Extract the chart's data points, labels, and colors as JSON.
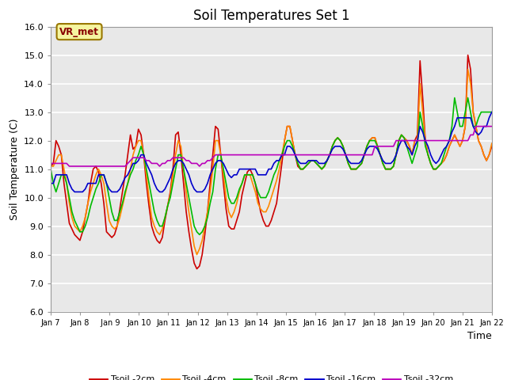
{
  "title": "Soil Temperatures Set 1",
  "xlabel": "Time",
  "ylabel": "Soil Temperature (C)",
  "ylim": [
    6.0,
    16.0
  ],
  "yticks": [
    6.0,
    7.0,
    8.0,
    9.0,
    10.0,
    11.0,
    12.0,
    13.0,
    14.0,
    15.0,
    16.0
  ],
  "xtick_labels": [
    "Jan 7",
    "Jan 8",
    " Jan 9",
    "Jan 10",
    "Jan 11",
    "Jan 12",
    "Jan 13",
    "Jan 14",
    "Jan 15",
    "Jan 16",
    "Jan 17",
    "Jan 18",
    "Jan 19",
    "Jan 20",
    "Jan 21",
    "Jan 22"
  ],
  "bg_color": "#e8e8e8",
  "fig_color": "#ffffff",
  "vrmet_label": "VR_met",
  "legend_labels": [
    "Tsoil -2cm",
    "Tsoil -4cm",
    "Tsoil -8cm",
    "Tsoil -16cm",
    "Tsoil -32cm"
  ],
  "line_colors": [
    "#cc0000",
    "#ff8800",
    "#00bb00",
    "#0000cc",
    "#bb00bb"
  ],
  "line_widths": [
    1.2,
    1.2,
    1.2,
    1.2,
    1.2
  ],
  "t2cm": [
    11.1,
    11.2,
    12.0,
    11.8,
    11.5,
    10.5,
    9.8,
    9.1,
    8.9,
    8.7,
    8.6,
    8.5,
    8.8,
    9.3,
    9.8,
    10.5,
    11.0,
    11.1,
    10.9,
    10.5,
    9.8,
    8.8,
    8.7,
    8.6,
    8.7,
    9.0,
    9.6,
    10.2,
    10.8,
    11.5,
    12.2,
    11.7,
    11.8,
    12.4,
    12.2,
    11.5,
    10.5,
    9.7,
    9.0,
    8.7,
    8.5,
    8.4,
    8.6,
    9.2,
    9.7,
    10.2,
    11.0,
    12.2,
    12.3,
    11.5,
    10.5,
    9.5,
    8.8,
    8.2,
    7.7,
    7.5,
    7.6,
    8.0,
    8.7,
    9.5,
    10.5,
    11.5,
    12.5,
    12.4,
    11.5,
    10.5,
    9.6,
    9.0,
    8.9,
    8.9,
    9.2,
    9.5,
    10.1,
    10.5,
    10.9,
    11.0,
    10.8,
    10.5,
    10.0,
    9.5,
    9.2,
    9.0,
    9.0,
    9.2,
    9.5,
    9.8,
    10.5,
    11.2,
    12.0,
    12.5,
    12.5,
    12.0,
    11.5,
    11.1,
    11.0,
    11.0,
    11.1,
    11.2,
    11.3,
    11.3,
    11.2,
    11.1,
    11.0,
    11.1,
    11.3,
    11.5,
    11.8,
    12.0,
    12.1,
    12.0,
    11.8,
    11.5,
    11.2,
    11.0,
    11.0,
    11.0,
    11.1,
    11.2,
    11.5,
    11.8,
    12.0,
    12.1,
    12.1,
    11.8,
    11.5,
    11.2,
    11.0,
    11.0,
    11.0,
    11.1,
    11.5,
    12.0,
    12.2,
    12.1,
    12.0,
    11.8,
    11.5,
    12.0,
    12.2,
    14.8,
    13.5,
    12.0,
    11.5,
    11.2,
    11.0,
    11.0,
    11.1,
    11.2,
    11.3,
    11.5,
    11.8,
    12.0,
    12.2,
    12.0,
    11.8,
    12.0,
    12.5,
    15.0,
    14.5,
    13.0,
    12.5,
    12.0,
    11.8,
    11.5,
    11.3,
    11.5,
    11.8
  ],
  "t4cm": [
    11.1,
    11.1,
    11.3,
    11.5,
    11.5,
    11.0,
    10.5,
    9.8,
    9.3,
    9.0,
    8.9,
    8.8,
    9.0,
    9.3,
    9.8,
    10.2,
    10.5,
    10.8,
    11.0,
    10.8,
    10.5,
    9.8,
    9.2,
    9.0,
    8.9,
    9.0,
    9.3,
    9.7,
    10.1,
    10.5,
    11.0,
    11.5,
    11.8,
    12.0,
    12.0,
    11.5,
    10.8,
    10.0,
    9.3,
    9.0,
    8.8,
    8.7,
    8.9,
    9.3,
    9.7,
    10.1,
    10.8,
    11.5,
    12.0,
    11.8,
    11.0,
    10.2,
    9.5,
    8.9,
    8.3,
    8.0,
    8.2,
    8.5,
    9.0,
    9.5,
    10.2,
    11.0,
    12.0,
    12.0,
    11.5,
    10.8,
    10.0,
    9.5,
    9.3,
    9.5,
    9.8,
    10.2,
    10.5,
    10.8,
    10.8,
    10.8,
    10.5,
    10.2,
    9.8,
    9.6,
    9.5,
    9.5,
    9.7,
    10.0,
    10.3,
    10.6,
    11.0,
    11.5,
    12.0,
    12.5,
    12.5,
    12.0,
    11.5,
    11.2,
    11.0,
    11.0,
    11.1,
    11.2,
    11.3,
    11.3,
    11.2,
    11.1,
    11.0,
    11.1,
    11.3,
    11.5,
    11.8,
    12.0,
    12.1,
    12.0,
    11.8,
    11.5,
    11.2,
    11.0,
    11.0,
    11.0,
    11.1,
    11.2,
    11.5,
    11.8,
    12.0,
    12.1,
    12.1,
    11.8,
    11.5,
    11.2,
    11.0,
    11.0,
    11.0,
    11.1,
    11.5,
    12.0,
    12.2,
    12.1,
    12.0,
    11.8,
    11.5,
    12.0,
    12.0,
    14.0,
    13.0,
    12.0,
    11.5,
    11.2,
    11.0,
    11.0,
    11.1,
    11.2,
    11.3,
    11.5,
    11.8,
    12.0,
    12.2,
    12.0,
    11.8,
    12.0,
    12.5,
    14.5,
    14.0,
    13.0,
    12.5,
    12.0,
    11.8,
    11.5,
    11.3,
    11.5,
    11.9
  ],
  "t8cm": [
    11.0,
    10.5,
    10.2,
    10.5,
    10.8,
    10.8,
    10.5,
    10.0,
    9.5,
    9.2,
    9.0,
    8.8,
    8.8,
    9.0,
    9.3,
    9.7,
    10.0,
    10.3,
    10.5,
    10.8,
    10.8,
    10.5,
    10.0,
    9.5,
    9.2,
    9.2,
    9.5,
    9.8,
    10.2,
    10.5,
    10.8,
    11.0,
    11.3,
    11.5,
    11.8,
    11.5,
    11.0,
    10.5,
    10.0,
    9.5,
    9.2,
    9.0,
    9.0,
    9.3,
    9.7,
    10.0,
    10.5,
    11.0,
    11.5,
    11.5,
    11.0,
    10.5,
    10.0,
    9.5,
    9.0,
    8.8,
    8.7,
    8.8,
    9.0,
    9.3,
    9.8,
    10.2,
    11.0,
    11.5,
    11.5,
    11.0,
    10.5,
    10.0,
    9.8,
    9.8,
    10.0,
    10.3,
    10.5,
    10.8,
    10.8,
    10.8,
    10.8,
    10.5,
    10.2,
    10.0,
    10.0,
    10.0,
    10.2,
    10.5,
    10.8,
    11.0,
    11.3,
    11.5,
    11.8,
    12.0,
    12.0,
    11.8,
    11.5,
    11.2,
    11.0,
    11.0,
    11.1,
    11.2,
    11.3,
    11.3,
    11.2,
    11.1,
    11.0,
    11.1,
    11.3,
    11.5,
    11.8,
    12.0,
    12.1,
    12.0,
    11.8,
    11.5,
    11.2,
    11.0,
    11.0,
    11.0,
    11.1,
    11.2,
    11.5,
    11.8,
    12.0,
    12.0,
    12.0,
    11.8,
    11.5,
    11.2,
    11.0,
    11.0,
    11.0,
    11.1,
    11.5,
    12.0,
    12.2,
    12.1,
    11.8,
    11.5,
    11.2,
    11.5,
    11.8,
    13.0,
    12.5,
    11.8,
    11.5,
    11.2,
    11.0,
    11.0,
    11.1,
    11.2,
    11.5,
    11.8,
    12.0,
    12.5,
    13.5,
    13.0,
    12.5,
    12.5,
    13.0,
    13.5,
    13.0,
    12.5,
    12.5,
    12.8,
    13.0,
    13.0,
    13.0,
    13.0,
    13.0
  ],
  "t16cm": [
    10.5,
    10.5,
    10.8,
    10.8,
    10.8,
    10.8,
    10.8,
    10.5,
    10.3,
    10.2,
    10.2,
    10.2,
    10.2,
    10.3,
    10.5,
    10.5,
    10.5,
    10.5,
    10.8,
    10.8,
    10.8,
    10.5,
    10.3,
    10.2,
    10.2,
    10.2,
    10.3,
    10.5,
    10.7,
    10.8,
    11.0,
    11.2,
    11.2,
    11.3,
    11.5,
    11.5,
    11.2,
    11.0,
    10.8,
    10.5,
    10.3,
    10.2,
    10.2,
    10.3,
    10.5,
    10.7,
    11.0,
    11.2,
    11.3,
    11.3,
    11.2,
    11.0,
    10.8,
    10.5,
    10.3,
    10.2,
    10.2,
    10.2,
    10.3,
    10.5,
    10.8,
    11.0,
    11.2,
    11.3,
    11.3,
    11.2,
    11.0,
    10.8,
    10.7,
    10.8,
    10.8,
    11.0,
    11.0,
    11.0,
    11.0,
    11.0,
    11.0,
    11.0,
    10.8,
    10.8,
    10.8,
    10.8,
    11.0,
    11.0,
    11.2,
    11.3,
    11.3,
    11.5,
    11.5,
    11.8,
    11.8,
    11.7,
    11.5,
    11.3,
    11.2,
    11.2,
    11.2,
    11.3,
    11.3,
    11.3,
    11.3,
    11.2,
    11.2,
    11.2,
    11.3,
    11.5,
    11.7,
    11.8,
    11.8,
    11.8,
    11.7,
    11.5,
    11.3,
    11.2,
    11.2,
    11.2,
    11.2,
    11.3,
    11.5,
    11.7,
    11.8,
    11.8,
    11.8,
    11.7,
    11.5,
    11.3,
    11.2,
    11.2,
    11.2,
    11.3,
    11.5,
    11.8,
    12.0,
    12.0,
    11.8,
    11.7,
    11.5,
    11.8,
    12.0,
    12.5,
    12.3,
    12.0,
    11.8,
    11.5,
    11.3,
    11.2,
    11.3,
    11.5,
    11.7,
    11.8,
    12.0,
    12.3,
    12.5,
    12.8,
    12.8,
    12.8,
    12.8,
    12.8,
    12.8,
    12.5,
    12.3,
    12.2,
    12.3,
    12.5,
    12.5,
    12.8,
    13.0
  ],
  "t32cm": [
    11.2,
    11.2,
    11.2,
    11.2,
    11.2,
    11.2,
    11.2,
    11.1,
    11.1,
    11.1,
    11.1,
    11.1,
    11.1,
    11.1,
    11.1,
    11.1,
    11.1,
    11.1,
    11.1,
    11.1,
    11.1,
    11.1,
    11.1,
    11.1,
    11.1,
    11.1,
    11.1,
    11.1,
    11.1,
    11.2,
    11.3,
    11.4,
    11.4,
    11.4,
    11.4,
    11.4,
    11.3,
    11.3,
    11.2,
    11.2,
    11.2,
    11.1,
    11.2,
    11.2,
    11.3,
    11.3,
    11.4,
    11.4,
    11.4,
    11.4,
    11.4,
    11.3,
    11.3,
    11.2,
    11.2,
    11.2,
    11.1,
    11.2,
    11.2,
    11.3,
    11.3,
    11.4,
    11.5,
    11.5,
    11.5,
    11.5,
    11.5,
    11.5,
    11.5,
    11.5,
    11.5,
    11.5,
    11.5,
    11.5,
    11.5,
    11.5,
    11.5,
    11.5,
    11.5,
    11.5,
    11.5,
    11.5,
    11.5,
    11.5,
    11.5,
    11.5,
    11.5,
    11.5,
    11.5,
    11.5,
    11.5,
    11.5,
    11.5,
    11.5,
    11.5,
    11.5,
    11.5,
    11.5,
    11.5,
    11.5,
    11.5,
    11.5,
    11.5,
    11.5,
    11.5,
    11.5,
    11.5,
    11.5,
    11.5,
    11.5,
    11.5,
    11.5,
    11.5,
    11.5,
    11.5,
    11.5,
    11.5,
    11.5,
    11.5,
    11.5,
    11.5,
    11.5,
    11.8,
    11.8,
    11.8,
    11.8,
    11.8,
    11.8,
    11.8,
    11.8,
    12.0,
    12.0,
    12.0,
    12.0,
    12.0,
    12.0,
    12.0,
    12.0,
    12.0,
    12.0,
    12.0,
    12.0,
    12.0,
    12.0,
    12.0,
    12.0,
    12.0,
    12.0,
    12.0,
    12.0,
    12.0,
    12.0,
    12.0,
    12.0,
    12.0,
    12.0,
    12.0,
    12.0,
    12.2,
    12.2,
    12.5,
    12.5,
    12.5,
    12.5,
    12.5,
    12.5,
    12.5
  ]
}
